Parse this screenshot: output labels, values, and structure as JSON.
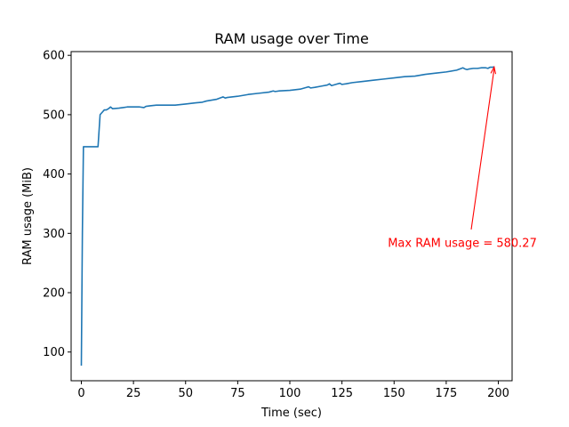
{
  "chart_data": {
    "type": "line",
    "title": "RAM usage over Time",
    "xlabel": "Time (sec)",
    "ylabel": "RAM usage (MiB)",
    "xlim": [
      -4.9,
      206.6
    ],
    "ylim": [
      51.6,
      606.3
    ],
    "xticks": [
      0,
      25,
      50,
      75,
      100,
      125,
      150,
      175,
      200
    ],
    "yticks": [
      100,
      200,
      300,
      400,
      500,
      600
    ],
    "grid": false,
    "series": [
      {
        "color": "#1f77b4",
        "x": [
          0,
          0.5,
          1,
          2,
          4,
          6,
          7,
          8,
          9,
          10,
          11,
          12,
          13,
          14,
          15,
          18,
          20,
          22,
          25,
          28,
          30,
          31,
          33,
          36,
          40,
          45,
          50,
          55,
          58,
          60,
          65,
          68,
          69,
          70,
          75,
          80,
          85,
          90,
          92,
          93,
          95,
          100,
          105,
          108,
          109,
          110,
          112,
          115,
          118,
          119,
          120,
          122,
          124,
          125,
          127,
          130,
          135,
          140,
          145,
          150,
          155,
          160,
          165,
          170,
          175,
          180,
          183,
          184,
          185,
          186,
          188,
          190,
          192,
          194,
          195,
          196,
          197,
          198
        ],
        "y": [
          77,
          300,
          446,
          446,
          446,
          446,
          446,
          446,
          500,
          504,
          508,
          508,
          510,
          513,
          510,
          511,
          512,
          513,
          513,
          513,
          512,
          514,
          515,
          516,
          516,
          516,
          518,
          520,
          521,
          523,
          526,
          530,
          528,
          529,
          531,
          534,
          536,
          538,
          540,
          539,
          540,
          541,
          543,
          546,
          547,
          545,
          546,
          548,
          550,
          552,
          549,
          551,
          553,
          551,
          552,
          554,
          556,
          558,
          560,
          562,
          564,
          565,
          568,
          570,
          572,
          575,
          579,
          577,
          576,
          577,
          578,
          578,
          579,
          579,
          578,
          580,
          580,
          580.27
        ]
      }
    ],
    "annotation": {
      "text": "Max RAM usage = 580.27",
      "color": "#ff0000",
      "point": [
        198,
        580.27
      ],
      "text_pos": [
        147,
        277
      ]
    }
  }
}
